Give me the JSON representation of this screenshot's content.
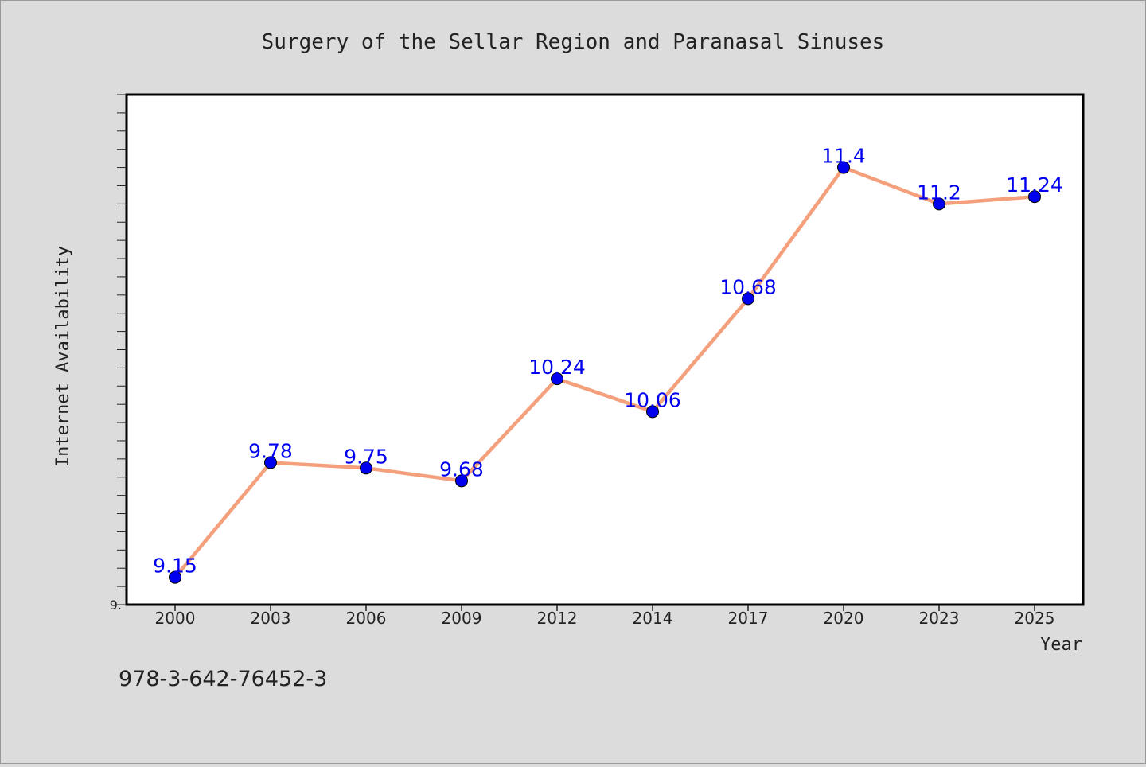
{
  "chart_data": {
    "type": "line",
    "title": "Surgery of the Sellar Region and Paranasal Sinuses",
    "xlabel": "Year",
    "ylabel": "Internet Availability",
    "categories": [
      "2000",
      "2003",
      "2006",
      "2009",
      "2012",
      "2014",
      "2017",
      "2020",
      "2023",
      "2025"
    ],
    "series": [
      {
        "values": [
          9.15,
          9.78,
          9.75,
          9.68,
          10.24,
          10.06,
          10.68,
          11.4,
          11.2,
          11.24
        ]
      }
    ],
    "data_labels": [
      "9.15",
      "9.78",
      "9.75",
      "9.68",
      "10.24",
      "10.06",
      "10.68",
      "11.4",
      "11.2",
      "11.24"
    ],
    "y_tick_label": "9.",
    "ylim": [
      9.0,
      11.8
    ],
    "grid": false,
    "line_color": "#f4a07c",
    "marker_color": "#0000ee",
    "label_color": "#0000ee"
  },
  "footer": {
    "isbn": "978-3-642-76452-3"
  }
}
